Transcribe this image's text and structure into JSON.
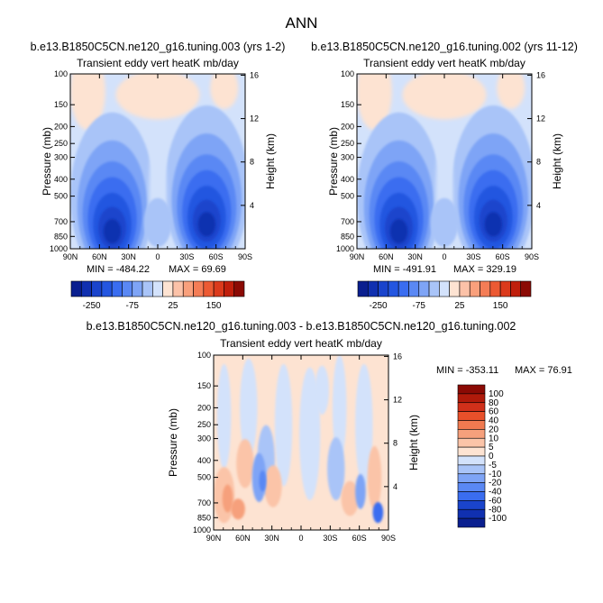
{
  "figure": {
    "title": "ANN"
  },
  "chart_data": [
    {
      "type": "heatmap",
      "case_title": "b.e13.B1850C5CN.ne120_g16.tuning.003 (yrs 1-2)",
      "variable": "Transient eddy vert heatK",
      "units": "mb/day",
      "ylabel": "Pressure (mb)",
      "ylabel_right": "Height (km)",
      "x_ticks": [
        "90N",
        "60N",
        "30N",
        "0",
        "30S",
        "60S",
        "90S"
      ],
      "x_range": [
        90,
        -90
      ],
      "y_ticks": [
        100,
        150,
        200,
        250,
        300,
        400,
        500,
        700,
        850,
        1000
      ],
      "y_range": [
        100,
        1000
      ],
      "y_scale": "log",
      "height_ticks": [
        4,
        8,
        12,
        16
      ],
      "min_label": "MIN = -484.22",
      "max_label": "MAX = 69.69",
      "levels": [
        -300,
        -250,
        -200,
        -150,
        -100,
        -75,
        -50,
        -25,
        0,
        25,
        50,
        75,
        100,
        150,
        200,
        250
      ],
      "level_labels": [
        "-250",
        "-75",
        "25",
        "150"
      ],
      "colors": [
        "#0a1f8f",
        "#1030b0",
        "#1a44cc",
        "#2456e0",
        "#3a6df0",
        "#5a88f4",
        "#7ea4f6",
        "#a9c4f8",
        "#d3e2fb",
        "#fde3d2",
        "#fcc2a8",
        "#f9a07c",
        "#f47d56",
        "#ec5a33",
        "#db3a1c",
        "#c01f0c",
        "#8b0a04"
      ],
      "legend": "below"
    },
    {
      "type": "heatmap",
      "case_title": "b.e13.B1850C5CN.ne120_g16.tuning.002 (yrs 11-12)",
      "variable": "Transient eddy vert heatK",
      "units": "mb/day",
      "ylabel": "Pressure (mb)",
      "ylabel_right": "Height (km)",
      "x_ticks": [
        "90N",
        "60N",
        "30N",
        "0",
        "30S",
        "60S",
        "90S"
      ],
      "x_range": [
        90,
        -90
      ],
      "y_ticks": [
        100,
        150,
        200,
        250,
        300,
        400,
        500,
        700,
        850,
        1000
      ],
      "y_range": [
        100,
        1000
      ],
      "y_scale": "log",
      "height_ticks": [
        4,
        8,
        12,
        16
      ],
      "min_label": "MIN = -491.91",
      "max_label": "MAX = 329.19",
      "levels": [
        -300,
        -250,
        -200,
        -150,
        -100,
        -75,
        -50,
        -25,
        0,
        25,
        50,
        75,
        100,
        150,
        200,
        250
      ],
      "level_labels": [
        "-250",
        "-75",
        "25",
        "150"
      ],
      "colors": [
        "#0a1f8f",
        "#1030b0",
        "#1a44cc",
        "#2456e0",
        "#3a6df0",
        "#5a88f4",
        "#7ea4f6",
        "#a9c4f8",
        "#d3e2fb",
        "#fde3d2",
        "#fcc2a8",
        "#f9a07c",
        "#f47d56",
        "#ec5a33",
        "#db3a1c",
        "#c01f0c",
        "#8b0a04"
      ],
      "legend": "below"
    },
    {
      "type": "heatmap",
      "case_title": "b.e13.B1850C5CN.ne120_g16.tuning.003 - b.e13.B1850C5CN.ne120_g16.tuning.002",
      "variable": "Transient eddy vert heatK",
      "units": "mb/day",
      "ylabel": "Pressure (mb)",
      "ylabel_right": "Height (km)",
      "x_ticks": [
        "90N",
        "60N",
        "30N",
        "0",
        "30S",
        "60S",
        "90S"
      ],
      "x_range": [
        90,
        -90
      ],
      "y_ticks": [
        100,
        150,
        200,
        250,
        300,
        400,
        500,
        700,
        850,
        1000
      ],
      "y_range": [
        100,
        1000
      ],
      "y_scale": "log",
      "height_ticks": [
        4,
        8,
        12,
        16
      ],
      "min_label": "MIN = -353.11",
      "max_label": "MAX =  76.91",
      "levels": [
        100,
        80,
        60,
        40,
        20,
        10,
        5,
        0,
        -5,
        -10,
        -20,
        -40,
        -60,
        -80,
        -100
      ],
      "level_labels": [
        "100",
        "80",
        "60",
        "40",
        "20",
        "10",
        "5",
        "0",
        "-5",
        "-10",
        "-20",
        "-40",
        "-60",
        "-80",
        "-100"
      ],
      "colors": [
        "#8b0a04",
        "#b01a0a",
        "#d0301a",
        "#e8502a",
        "#f07a50",
        "#f6a07c",
        "#fbc4a8",
        "#fde3d2",
        "#d3e2fb",
        "#a9c4f8",
        "#7ea4f6",
        "#5a88f4",
        "#3a6df0",
        "#1a44cc",
        "#1030b0",
        "#0a1f8f"
      ],
      "legend": "right"
    }
  ]
}
